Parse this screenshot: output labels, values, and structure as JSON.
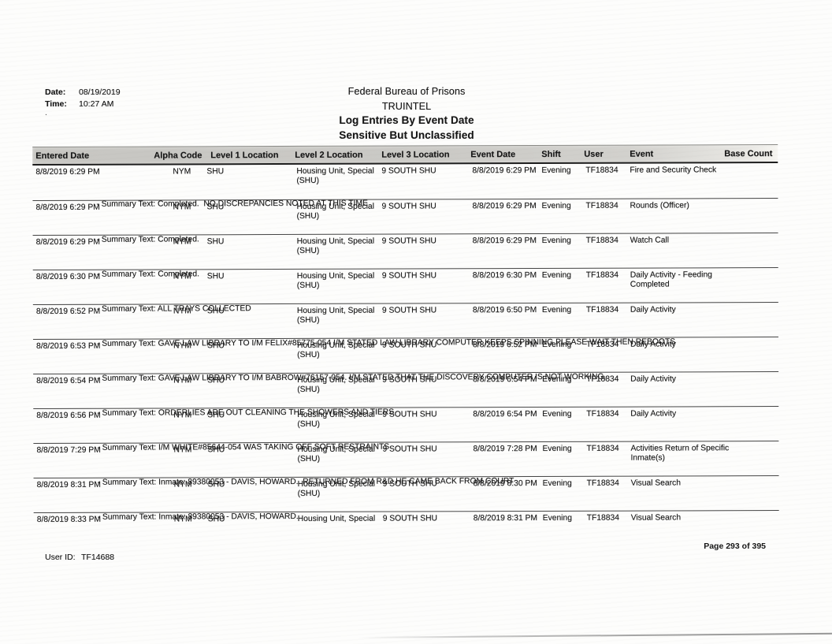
{
  "header": {
    "date_label": "Date:",
    "date_value": "08/19/2019",
    "time_label": "Time:",
    "time_value": "10:27 AM",
    "stray_mark": ".",
    "org": "Federal Bureau of Prisons",
    "system": "TRUINTEL",
    "report_title": "Log Entries By Event Date",
    "classification": "Sensitive But Unclassified"
  },
  "table": {
    "columns": [
      "Entered Date",
      "Alpha Code",
      "Level 1 Location",
      "Level 2 Location",
      "Level 3 Location",
      "Event Date",
      "Shift",
      "User",
      "Event",
      "Base Count"
    ],
    "summary_label": "- Summary Text:",
    "rows": [
      {
        "entered_date": "8/8/2019 6:29 PM",
        "alpha_code": "NYM",
        "level1": "SHU",
        "level2": "Housing Unit, Special\n(SHU)",
        "level3": "9 SOUTH SHU",
        "event_date": "8/8/2019 6:29 PM",
        "shift": "Evening",
        "user": "TF18834",
        "event": "Fire and Security Check",
        "base_count": "",
        "summary": "Completed.  NO DISCREPANCIES NOTED AT THIS TIME"
      },
      {
        "entered_date": "8/8/2019 6:29 PM",
        "alpha_code": "NYM",
        "level1": "SHU",
        "level2": "Housing Unit, Special\n(SHU)",
        "level3": "9 SOUTH SHU",
        "event_date": "8/8/2019 6:29 PM",
        "shift": "Evening",
        "user": "TF18834",
        "event": "Rounds (Officer)",
        "base_count": "",
        "summary": "Completed."
      },
      {
        "entered_date": "8/8/2019 6:29 PM",
        "alpha_code": "NYM",
        "level1": "SHU",
        "level2": "Housing Unit, Special\n(SHU)",
        "level3": "9 SOUTH SHU",
        "event_date": "8/8/2019 6:29 PM",
        "shift": "Evening",
        "user": "TF18834",
        "event": "Watch Call",
        "base_count": "",
        "summary": "Completed."
      },
      {
        "entered_date": "8/8/2019 6:30 PM",
        "alpha_code": "NYM",
        "level1": "SHU",
        "level2": "Housing Unit, Special\n(SHU)",
        "level3": "9 SOUTH SHU",
        "event_date": "8/8/2019 6:30 PM",
        "shift": "Evening",
        "user": "TF18834",
        "event": "Daily Activity - Feeding\nCompleted",
        "base_count": "",
        "summary": "ALL TRAYS COLLECTED"
      },
      {
        "entered_date": "8/8/2019 6:52 PM",
        "alpha_code": "NYM",
        "level1": "SHU",
        "level2": "Housing Unit, Special\n(SHU)",
        "level3": "9 SOUTH SHU",
        "event_date": "8/8/2019 6:50 PM",
        "shift": "Evening",
        "user": "TF18834",
        "event": "Daily Activity",
        "base_count": "",
        "summary": "GAVE LAW LIBRARY TO I/M FELIX#85775-054 I/M STATED LAW LIBRARY COMPUTER KEEPS SPINNING PLEASE WAIT THEN REBOOTS"
      },
      {
        "entered_date": "8/8/2019 6:53 PM",
        "alpha_code": "NYM",
        "level1": "SHU",
        "level2": "Housing Unit, Special\n(SHU)",
        "level3": "9 SOUTH SHU",
        "event_date": "8/8/2019 6:52 PM",
        "shift": "Evening",
        "user": "TF18834",
        "event": "Daily Activity",
        "base_count": "",
        "summary": "GAVE LAW LIBRARY TO I/M BABROW#76157-054. I/M STATED THAT THE DISCOVERY COMPUTER IS NOT WORKING."
      },
      {
        "entered_date": "8/8/2019 6:54 PM",
        "alpha_code": "NYM",
        "level1": "SHU",
        "level2": "Housing Unit, Special\n(SHU)",
        "level3": "9 SOUTH SHU",
        "event_date": "8/8/2019 6:54 PM",
        "shift": "Evening",
        "user": "TF18834",
        "event": "Daily Activity",
        "base_count": "",
        "summary": "ORDERLIES ARE OUT CLEANING THE SHOWERS AND TIERS"
      },
      {
        "entered_date": "8/8/2019 6:56 PM",
        "alpha_code": "NYM",
        "level1": "SHU",
        "level2": "Housing Unit, Special\n(SHU)",
        "level3": "9 SOUTH SHU",
        "event_date": "8/8/2019 6:54 PM",
        "shift": "Evening",
        "user": "TF18834",
        "event": "Daily Activity",
        "base_count": "",
        "summary": "I/M WHITE#85644-054 WAS TAKING OFF SOFT RESTRAINTS"
      },
      {
        "entered_date": "8/8/2019 7:29 PM",
        "alpha_code": "NYM",
        "level1": "SHU",
        "level2": "Housing Unit, Special\n(SHU)",
        "level3": "9 SOUTH SHU",
        "event_date": "8/8/2019 7:28 PM",
        "shift": "Evening",
        "user": "TF18834",
        "event": "Activities Return of Specific\nInmate(s)",
        "base_count": "",
        "summary": "Inmate: 89380053 - DAVIS, HOWARD.  RETURNED FROM R&D HE CAME BACK FROM COURT"
      },
      {
        "entered_date": "8/8/2019 8:31 PM",
        "alpha_code": "NYM",
        "level1": "SHU",
        "level2": "Housing Unit, Special\n(SHU)",
        "level3": "9 SOUTH SHU",
        "event_date": "8/8/2019 8:30 PM",
        "shift": "Evening",
        "user": "TF18834",
        "event": "Visual Search",
        "base_count": "",
        "summary": "Inmate: 89380053 - DAVIS, HOWARD."
      },
      {
        "entered_date": "8/8/2019 8:33 PM",
        "alpha_code": "NYM",
        "level1": "SHU",
        "level2": "Housing Unit, Special",
        "level3": "9 SOUTH SHU",
        "event_date": "8/8/2019 8:31 PM",
        "shift": "Evening",
        "user": "TF18834",
        "event": "Visual Search",
        "base_count": "",
        "summary": ""
      }
    ]
  },
  "footer": {
    "user_id_label": "User ID:",
    "user_id_value": "TF14688",
    "page_text": "Page 293 of 395"
  }
}
